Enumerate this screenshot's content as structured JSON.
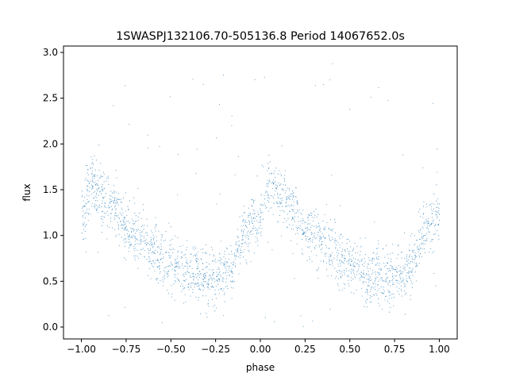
{
  "chart_data": {
    "type": "scatter",
    "title": "1SWASPJ132106.70-505136.8 Period 14067652.0s",
    "xlabel": "phase",
    "ylabel": "flux",
    "xlim": [
      -1.1,
      1.1
    ],
    "ylim": [
      -0.13,
      3.07
    ],
    "xticks": [
      -1.0,
      -0.75,
      -0.5,
      -0.25,
      0.0,
      0.25,
      0.5,
      0.75,
      1.0
    ],
    "xtick_labels": [
      "−1.00",
      "−0.75",
      "−0.50",
      "−0.25",
      "0.00",
      "0.25",
      "0.50",
      "0.75",
      "1.00"
    ],
    "yticks": [
      0.0,
      0.5,
      1.0,
      1.5,
      2.0,
      2.5,
      3.0
    ],
    "ytick_labels": [
      "0.0",
      "0.5",
      "1.0",
      "1.5",
      "2.0",
      "2.5",
      "3.0"
    ],
    "grid": false,
    "marker_color": "#1f77b4",
    "series": [
      {
        "x_range": [
          -1.0,
          1.0
        ],
        "phase_profile": [
          {
            "phase": 0.0,
            "flux": 1.2
          },
          {
            "phase": 0.05,
            "flux": 1.6
          },
          {
            "phase": 0.1,
            "flux": 1.45
          },
          {
            "phase": 0.15,
            "flux": 1.35
          },
          {
            "phase": 0.2,
            "flux": 1.25
          },
          {
            "phase": 0.25,
            "flux": 1.05
          },
          {
            "phase": 0.3,
            "flux": 1.0
          },
          {
            "phase": 0.35,
            "flux": 0.95
          },
          {
            "phase": 0.4,
            "flux": 0.85
          },
          {
            "phase": 0.45,
            "flux": 0.75
          },
          {
            "phase": 0.5,
            "flux": 0.7
          },
          {
            "phase": 0.55,
            "flux": 0.65
          },
          {
            "phase": 0.6,
            "flux": 0.55
          },
          {
            "phase": 0.65,
            "flux": 0.6
          },
          {
            "phase": 0.7,
            "flux": 0.5
          },
          {
            "phase": 0.75,
            "flux": 0.55
          },
          {
            "phase": 0.8,
            "flux": 0.6
          },
          {
            "phase": 0.85,
            "flux": 0.7
          },
          {
            "phase": 0.9,
            "flux": 1.0
          },
          {
            "phase": 0.95,
            "flux": 1.15
          },
          {
            "phase": 1.0,
            "flux": 1.2
          }
        ]
      }
    ]
  }
}
